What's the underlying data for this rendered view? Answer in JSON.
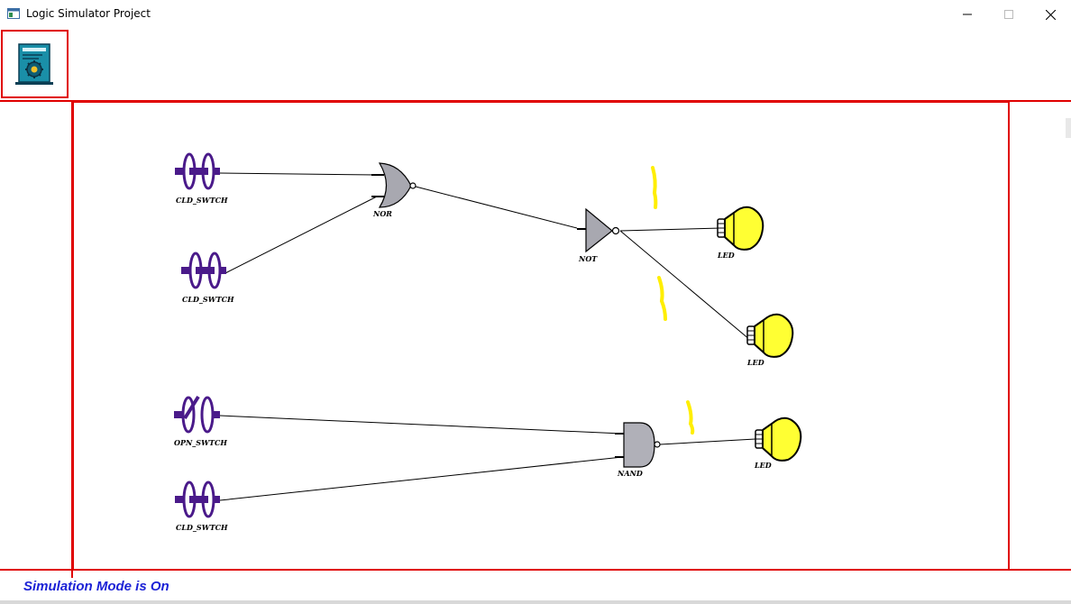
{
  "window": {
    "title": "Logic Simulator Project",
    "icon": "app-window-icon",
    "controls": [
      "minimize-icon",
      "maximize-icon",
      "close-icon"
    ]
  },
  "toolbar": {
    "mode_button_icon": "simulation-mode-icon"
  },
  "circuit": {
    "switches": [
      {
        "label": "CLD_SWTCH",
        "state": "closed"
      },
      {
        "label": "CLD_SWTCH",
        "state": "closed"
      },
      {
        "label": "OPN_SWTCH",
        "state": "open"
      },
      {
        "label": "CLD_SWTCH",
        "state": "closed"
      }
    ],
    "gates": [
      {
        "label": "NOR",
        "type": "nor"
      },
      {
        "label": "NOT",
        "type": "not"
      },
      {
        "label": "NAND",
        "type": "nand"
      }
    ],
    "leds": [
      {
        "label": "LED",
        "state": "on"
      },
      {
        "label": "LED",
        "state": "on"
      },
      {
        "label": "LED",
        "state": "on"
      }
    ]
  },
  "status": {
    "text": "Simulation Mode is On"
  },
  "colors": {
    "border": "#e00000",
    "status_text": "#1c22d6",
    "led_on": "#ffff33",
    "switch": "#4a1a8a",
    "gate_fill": "#a8a8b0",
    "glow": "#ffee00"
  }
}
